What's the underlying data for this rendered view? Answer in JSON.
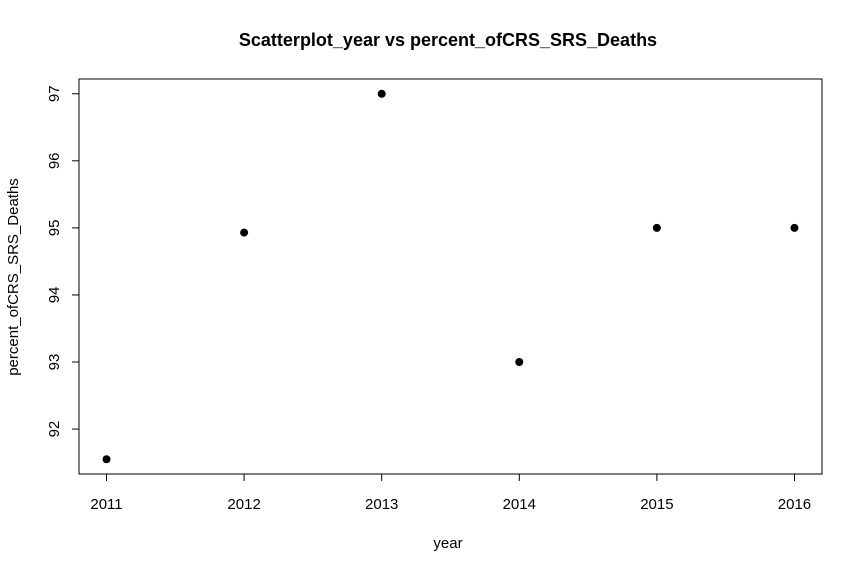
{
  "chart_data": {
    "type": "scatter",
    "title": "Scatterplot_year vs percent_ofCRS_SRS_Deaths",
    "xlabel": "year",
    "ylabel": "percent_ofCRS_SRS_Deaths",
    "x": [
      2011,
      2012,
      2013,
      2014,
      2015,
      2016
    ],
    "y": [
      91.55,
      94.93,
      97.0,
      93.0,
      95.0,
      95.0
    ],
    "xlim": [
      2010.8,
      2016.2
    ],
    "ylim": [
      91.33,
      97.22
    ],
    "xticks": [
      2011,
      2012,
      2013,
      2014,
      2015,
      2016
    ],
    "yticks": [
      92,
      93,
      94,
      95,
      96,
      97
    ],
    "grid": false,
    "legend": "none",
    "colors": {
      "point": "#000000",
      "axis": "#000000",
      "background": "#ffffff"
    }
  }
}
